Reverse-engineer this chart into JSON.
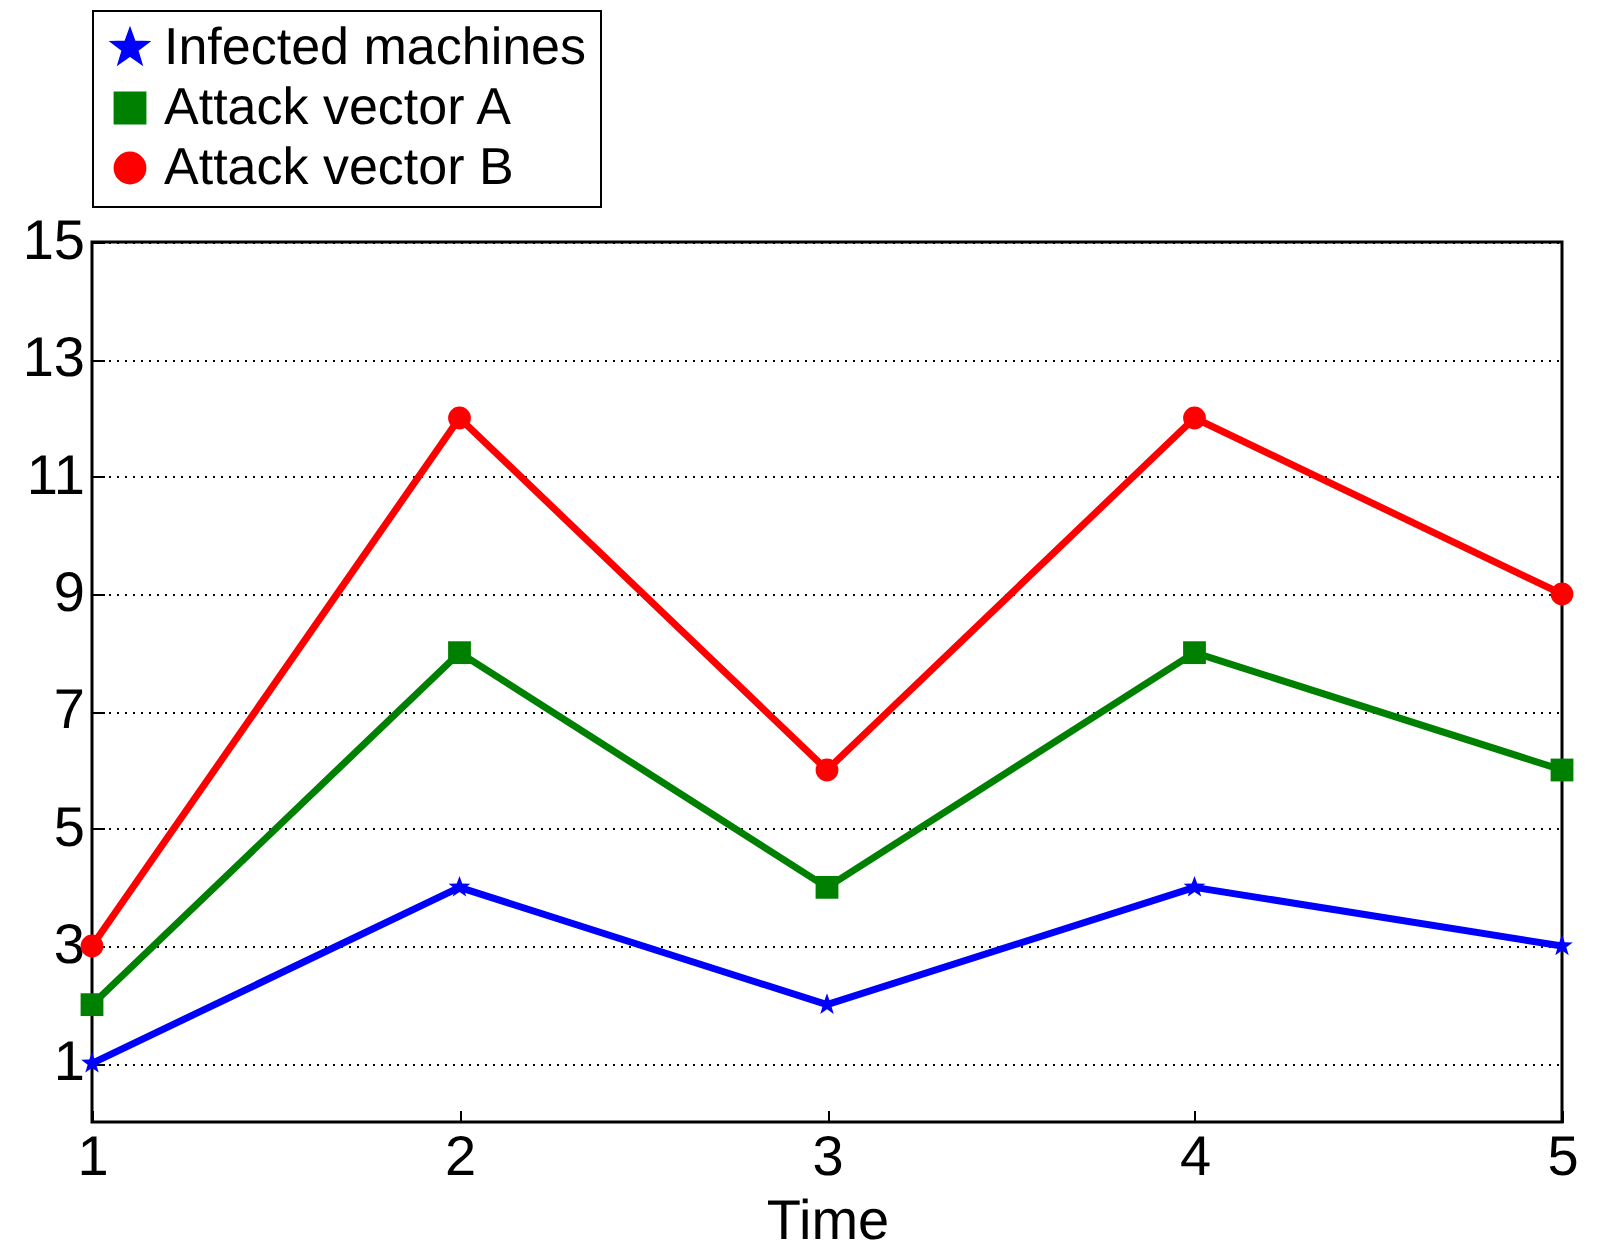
{
  "chart_data": {
    "type": "line",
    "xlabel": "Time",
    "x": [
      1,
      2,
      3,
      4,
      5
    ],
    "xlim": [
      1,
      5
    ],
    "xticks": [
      1,
      2,
      3,
      4,
      5
    ],
    "ylim": [
      0,
      15
    ],
    "yticks": [
      1,
      3,
      5,
      7,
      9,
      11,
      13,
      15
    ],
    "grid": "y",
    "legend": "top",
    "line_style": "solid",
    "series": [
      {
        "name": "Infected machines",
        "color": "#0000ff",
        "marker": "star",
        "values": [
          1,
          4,
          2,
          4,
          3
        ]
      },
      {
        "name": "Attack vector A",
        "color": "#008000",
        "marker": "square",
        "values": [
          2,
          8,
          4,
          8,
          6
        ]
      },
      {
        "name": "Attack vector B",
        "color": "#ff0000",
        "marker": "circle",
        "values": [
          3,
          12,
          6,
          12,
          9
        ]
      }
    ]
  }
}
